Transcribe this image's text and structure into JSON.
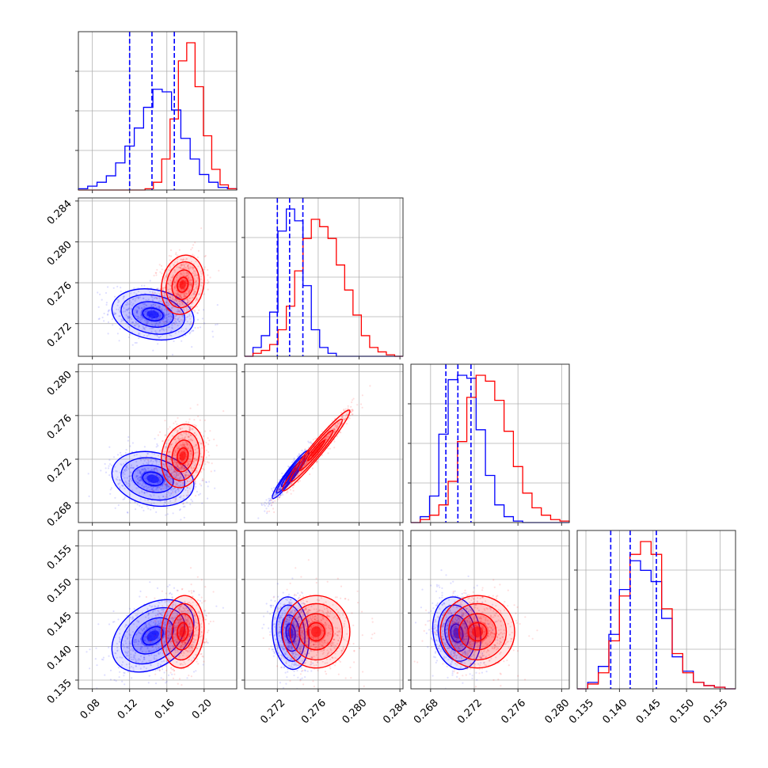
{
  "chart_data": {
    "type": "corner",
    "colors": {
      "blue": "#0000ff",
      "red": "#ff0000",
      "grid": "#b0b0b0"
    },
    "grid": true,
    "parameters": [
      {
        "range": [
          0.065,
          0.235
        ],
        "ticks": [
          "0.08",
          "0.12",
          "0.16",
          "0.20"
        ],
        "tick_values": [
          0.08,
          0.12,
          0.16,
          0.2
        ]
      },
      {
        "range": [
          0.2688,
          0.2843
        ],
        "ticks": [
          "0.272",
          "0.276",
          "0.280",
          "0.284"
        ],
        "tick_values": [
          0.272,
          0.276,
          0.28,
          0.284
        ]
      },
      {
        "range": [
          0.2662,
          0.2807
        ],
        "ticks": [
          "0.268",
          "0.272",
          "0.276",
          "0.280"
        ],
        "tick_values": [
          0.268,
          0.272,
          0.276,
          0.28
        ]
      },
      {
        "range": [
          0.1337,
          0.1573
        ],
        "ticks": [
          "0.135",
          "0.140",
          "0.145",
          "0.150",
          "0.155"
        ],
        "tick_values": [
          0.135,
          0.14,
          0.145,
          0.15,
          0.155
        ]
      }
    ],
    "quantiles_blue": [
      [
        0.12,
        0.144,
        0.168
      ],
      [
        0.272,
        0.2732,
        0.2745
      ],
      [
        0.2694,
        0.2705,
        0.2717
      ],
      [
        0.1387,
        0.1416,
        0.1455
      ]
    ],
    "series": [
      {
        "color": "blue",
        "hist": [
          [
            1,
            3,
            6,
            11,
            21,
            34,
            48,
            64,
            78,
            76,
            62,
            40,
            24,
            12,
            6,
            2,
            1
          ],
          [
            0,
            6,
            14,
            30,
            85,
            100,
            92,
            48,
            18,
            6,
            2,
            0,
            0,
            0,
            0,
            0,
            0,
            0,
            0
          ],
          [
            0,
            4,
            18,
            60,
            97,
            100,
            98,
            63,
            32,
            12,
            4,
            1,
            0,
            0,
            0,
            0,
            0
          ],
          [
            0,
            4,
            14,
            34,
            62,
            80,
            74,
            67,
            44,
            20,
            11,
            4,
            2,
            1,
            0
          ]
        ]
      },
      {
        "color": "red",
        "hist": [
          [
            0,
            0,
            0,
            0,
            0,
            0,
            0,
            0,
            1,
            6,
            24,
            55,
            100,
            114,
            80,
            42,
            16,
            4,
            1
          ],
          [
            0,
            2,
            4,
            8,
            18,
            34,
            58,
            80,
            93,
            88,
            80,
            62,
            45,
            28,
            14,
            6,
            3,
            1,
            0
          ],
          [
            0,
            2,
            5,
            12,
            28,
            55,
            85,
            100,
            96,
            83,
            62,
            38,
            20,
            10,
            5,
            2,
            1
          ],
          [
            0,
            3,
            10,
            30,
            58,
            84,
            92,
            84,
            50,
            22,
            10,
            4,
            2,
            1,
            0
          ]
        ]
      }
    ],
    "pairs": [
      {
        "row": 1,
        "col": 0,
        "blue": {
          "center": [
            0.145,
            0.2729
          ],
          "sigma": [
            0.022,
            0.00125
          ],
          "rho": -0.2
        },
        "red": {
          "center": [
            0.177,
            0.2758
          ],
          "sigma": [
            0.0115,
            0.00145
          ],
          "rho": 0.15
        }
      },
      {
        "row": 2,
        "col": 0,
        "blue": {
          "center": [
            0.145,
            0.2702
          ],
          "sigma": [
            0.022,
            0.00125
          ],
          "rho": -0.2
        },
        "red": {
          "center": [
            0.177,
            0.2723
          ],
          "sigma": [
            0.0115,
            0.00145
          ],
          "rho": 0.15
        }
      },
      {
        "row": 2,
        "col": 1,
        "blue": {
          "center": [
            0.2733,
            0.2706
          ],
          "sigma": [
            0.0009,
            0.0011
          ],
          "rho": 0.95
        },
        "red": {
          "center": [
            0.2758,
            0.2728
          ],
          "sigma": [
            0.00165,
            0.00185
          ],
          "rho": 0.97
        }
      },
      {
        "row": 3,
        "col": 0,
        "blue": {
          "center": [
            0.145,
            0.1416
          ],
          "sigma": [
            0.022,
            0.0027
          ],
          "rho": 0.35
        },
        "red": {
          "center": [
            0.177,
            0.1422
          ],
          "sigma": [
            0.0115,
            0.0027
          ],
          "rho": 0.1
        }
      },
      {
        "row": 3,
        "col": 1,
        "blue": {
          "center": [
            0.2733,
            0.142
          ],
          "sigma": [
            0.0009,
            0.0027
          ],
          "rho": -0.15
        },
        "red": {
          "center": [
            0.2758,
            0.1422
          ],
          "sigma": [
            0.00165,
            0.0027
          ],
          "rho": 0.0
        }
      },
      {
        "row": 3,
        "col": 2,
        "blue": {
          "center": [
            0.2704,
            0.142
          ],
          "sigma": [
            0.0011,
            0.0027
          ],
          "rho": -0.15
        },
        "red": {
          "center": [
            0.2723,
            0.1422
          ],
          "sigma": [
            0.0017,
            0.0027
          ],
          "rho": 0.0
        }
      }
    ]
  }
}
